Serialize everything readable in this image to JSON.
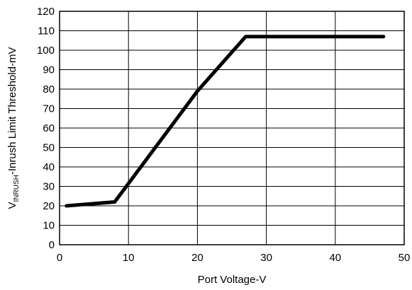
{
  "chart_data": {
    "type": "line",
    "title": "",
    "xlabel": "Port Voltage-V",
    "ylabel": {
      "main": "V",
      "subscript": "INRUSH",
      "rest": "-Inrush Limit Threshold-mV"
    },
    "xlim": [
      0,
      50
    ],
    "ylim": [
      0,
      120
    ],
    "xticks": [
      0,
      10,
      20,
      30,
      40,
      50
    ],
    "yticks": [
      0,
      10,
      20,
      30,
      40,
      50,
      60,
      70,
      80,
      90,
      100,
      110,
      120
    ],
    "grid": true,
    "series": [
      {
        "x": [
          1,
          8,
          20,
          27,
          47
        ],
        "y": [
          20,
          22,
          79,
          107,
          107
        ],
        "color": "#000000"
      }
    ]
  }
}
